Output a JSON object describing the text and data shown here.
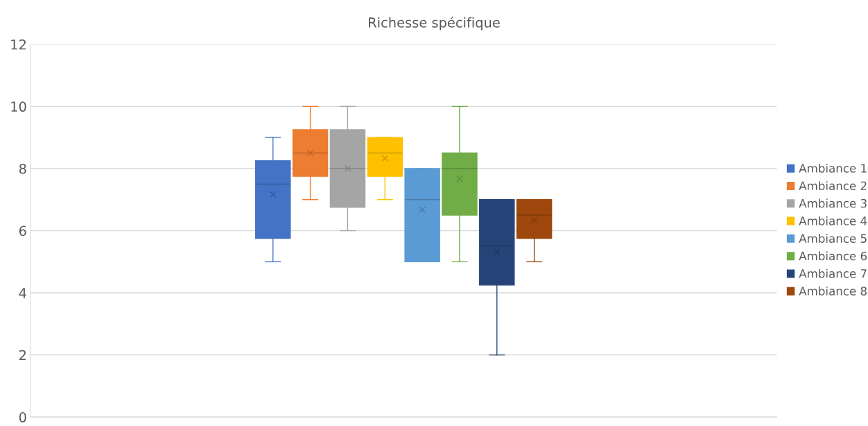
{
  "chart_data": {
    "type": "box",
    "title": "Richesse spécifique",
    "categories": [
      null
    ],
    "ylim": [
      0,
      12
    ],
    "yticks": [
      0,
      2,
      4,
      6,
      8,
      10,
      12
    ],
    "grid": "y",
    "legend": "right",
    "series": [
      {
        "name": "Ambiance 1",
        "color": "#4472c4",
        "boxes": [
          {
            "low": 5,
            "q1": 5.75,
            "median": 7.5,
            "q3": 8.25,
            "high": 9,
            "mean": 7.17
          }
        ]
      },
      {
        "name": "Ambiance 2",
        "color": "#ed7d31",
        "boxes": [
          {
            "low": 7,
            "q1": 7.75,
            "median": 8.5,
            "q3": 9.25,
            "high": 10,
            "mean": 8.5
          }
        ]
      },
      {
        "name": "Ambiance 3",
        "color": "#a5a5a5",
        "boxes": [
          {
            "low": 6,
            "q1": 6.75,
            "median": 8,
            "q3": 9.25,
            "high": 10,
            "mean": 8
          }
        ]
      },
      {
        "name": "Ambiance 4",
        "color": "#ffc000",
        "boxes": [
          {
            "low": 7,
            "q1": 7.75,
            "median": 8.5,
            "q3": 9,
            "high": 9,
            "mean": 8.33
          }
        ]
      },
      {
        "name": "Ambiance 5",
        "color": "#5b9bd5",
        "boxes": [
          {
            "low": 5,
            "q1": 5,
            "median": 7,
            "q3": 8,
            "high": 8,
            "mean": 6.67
          }
        ]
      },
      {
        "name": "Ambiance 6",
        "color": "#70ad47",
        "boxes": [
          {
            "low": 5,
            "q1": 6.5,
            "median": 8,
            "q3": 8.5,
            "high": 10,
            "mean": 7.67
          }
        ]
      },
      {
        "name": "Ambiance 7",
        "color": "#264478",
        "boxes": [
          {
            "low": 2,
            "q1": 4.25,
            "median": 5.5,
            "q3": 7,
            "high": 7,
            "mean": 5.33
          }
        ]
      },
      {
        "name": "Ambiance 8",
        "color": "#9e480e",
        "boxes": [
          {
            "low": 5,
            "q1": 5.75,
            "median": 6.5,
            "q3": 7,
            "high": 7,
            "mean": 6.33
          }
        ]
      }
    ]
  }
}
